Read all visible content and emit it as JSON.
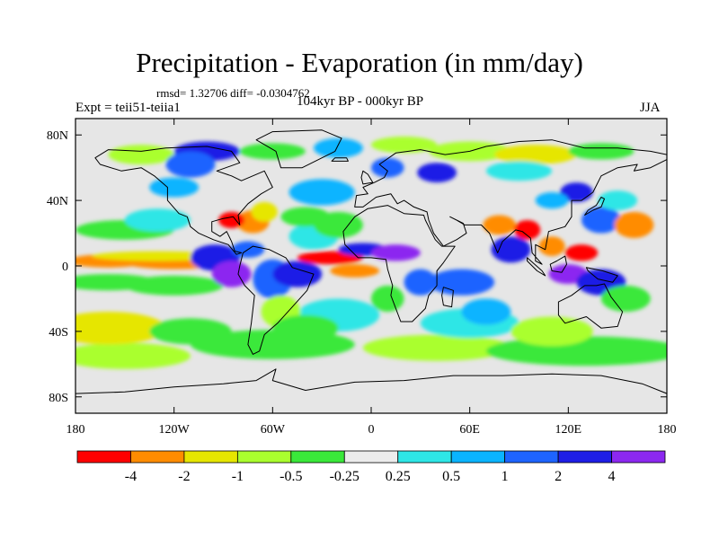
{
  "title": "Precipitation - Evaporation (in mm/day)",
  "stats": "rmsd= 1.32706 diff= -0.0304762",
  "experiment": "Expt = teii51-teiia1",
  "period": "104kyr BP - 000kyr BP",
  "season": "JJA",
  "map": {
    "lon_range": [
      -180,
      180
    ],
    "lat_range": [
      -90,
      90
    ],
    "land_color": "#e6e6e6",
    "lat_ticks": [
      {
        "value": 80,
        "label": "80N"
      },
      {
        "value": 40,
        "label": "40N"
      },
      {
        "value": 0,
        "label": "0"
      },
      {
        "value": -40,
        "label": "40S"
      },
      {
        "value": -80,
        "label": "80S"
      }
    ],
    "lon_ticks": [
      {
        "value": -180,
        "label": "180"
      },
      {
        "value": -120,
        "label": "120W"
      },
      {
        "value": -60,
        "label": "60W"
      },
      {
        "value": 0,
        "label": "0"
      },
      {
        "value": 60,
        "label": "60E"
      },
      {
        "value": 120,
        "label": "120E"
      },
      {
        "value": 180,
        "label": "180"
      }
    ]
  },
  "colorbar": {
    "colors": [
      "#ff0000",
      "#ff8c00",
      "#e6e600",
      "#aaff2e",
      "#3ae83a",
      "#ececec",
      "#2ee6e6",
      "#0ab4ff",
      "#1e64ff",
      "#1e1ee6",
      "#8c28f0"
    ],
    "labels": [
      "-4",
      "-2",
      "-1",
      "-0.5",
      "-0.25",
      "0.25",
      "0.5",
      "1",
      "2",
      "4"
    ]
  }
}
